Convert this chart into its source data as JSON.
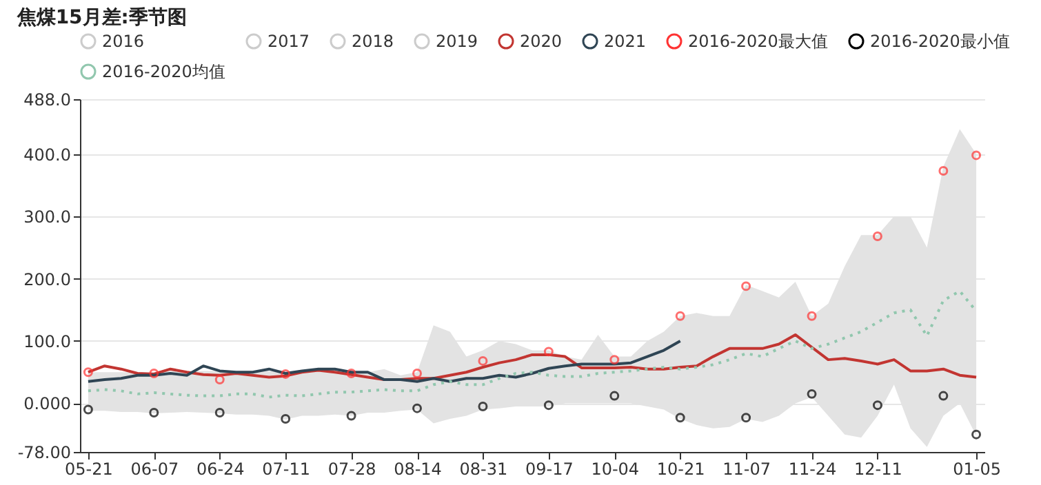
{
  "chart_data": {
    "type": "line",
    "title": "焦煤15月差:季节图",
    "categories": [
      "05-21",
      null,
      null,
      null,
      "06-07",
      null,
      null,
      null,
      "06-24",
      null,
      null,
      null,
      "07-11",
      null,
      null,
      null,
      "07-28",
      null,
      null,
      null,
      "08-14",
      null,
      null,
      null,
      "08-31",
      null,
      null,
      null,
      "09-17",
      null,
      null,
      null,
      "10-04",
      null,
      null,
      null,
      "10-21",
      null,
      null,
      null,
      "11-07",
      null,
      null,
      null,
      "11-24",
      null,
      null,
      null,
      "12-11",
      null,
      null,
      null,
      null,
      null,
      "01-05"
    ],
    "ylim": [
      -78,
      488
    ],
    "yticks": [
      {
        "value": -78,
        "label": "-78.00"
      },
      {
        "value": 0,
        "label": "0.000"
      },
      {
        "value": 100,
        "label": "100.0"
      },
      {
        "value": 200,
        "label": "200.0"
      },
      {
        "value": 300,
        "label": "300.0"
      },
      {
        "value": 400,
        "label": "400.0"
      },
      {
        "value": 488,
        "label": "488.0"
      }
    ],
    "grid": "y",
    "legend": "top",
    "series": [
      {
        "name": "2016",
        "color": "#cccccc",
        "values": [
          null,
          null,
          null,
          null,
          null,
          null,
          null,
          null,
          null,
          null,
          null,
          null,
          null,
          null,
          null,
          null,
          null,
          null,
          null,
          null,
          null,
          null,
          null,
          null,
          null,
          null,
          null,
          null,
          null,
          null,
          null,
          null,
          null,
          null,
          null,
          null,
          null,
          null,
          null,
          null,
          null,
          null,
          null,
          null,
          null,
          null,
          null,
          null,
          null,
          null,
          null,
          null,
          null,
          null,
          null
        ]
      },
      {
        "name": "2017",
        "color": "#cccccc",
        "values": [
          null,
          null,
          null,
          null,
          null,
          null,
          null,
          null,
          null,
          null,
          null,
          null,
          null,
          null,
          null,
          null,
          null,
          null,
          null,
          null,
          null,
          null,
          null,
          null,
          null,
          null,
          null,
          null,
          null,
          null,
          null,
          null,
          null,
          null,
          null,
          null,
          null,
          null,
          null,
          null,
          null,
          null,
          null,
          null,
          null,
          null,
          null,
          null,
          null,
          null,
          null,
          null,
          null,
          null,
          null
        ]
      },
      {
        "name": "2018",
        "color": "#cccccc",
        "values": [
          null,
          null,
          null,
          null,
          null,
          null,
          null,
          null,
          null,
          null,
          null,
          null,
          null,
          null,
          null,
          null,
          null,
          null,
          null,
          null,
          null,
          null,
          null,
          null,
          null,
          null,
          null,
          null,
          null,
          null,
          null,
          null,
          null,
          null,
          null,
          null,
          null,
          null,
          null,
          null,
          null,
          null,
          null,
          null,
          null,
          null,
          null,
          null,
          null,
          null,
          null,
          null,
          null,
          null,
          null
        ]
      },
      {
        "name": "2019",
        "color": "#cccccc",
        "values": [
          null,
          null,
          null,
          null,
          null,
          null,
          null,
          null,
          null,
          null,
          null,
          null,
          null,
          null,
          null,
          null,
          null,
          null,
          null,
          null,
          null,
          null,
          null,
          null,
          null,
          null,
          null,
          null,
          null,
          null,
          null,
          null,
          null,
          null,
          null,
          null,
          null,
          null,
          null,
          null,
          null,
          null,
          null,
          null,
          null,
          null,
          null,
          null,
          null,
          null,
          null,
          null,
          null,
          null,
          null
        ]
      },
      {
        "name": "2020",
        "color": "#c23531",
        "values": [
          50,
          60,
          55,
          48,
          47,
          55,
          50,
          46,
          45,
          48,
          45,
          42,
          44,
          50,
          53,
          50,
          46,
          42,
          38,
          38,
          40,
          40,
          45,
          50,
          58,
          65,
          70,
          78,
          78,
          75,
          57,
          57,
          57,
          58,
          55,
          55,
          58,
          60,
          75,
          88,
          88,
          88,
          95,
          110,
          90,
          70,
          72,
          68,
          63,
          70,
          52,
          52,
          55,
          45,
          42
        ]
      },
      {
        "name": "2021",
        "color": "#2f4554",
        "values": [
          35,
          38,
          40,
          45,
          45,
          48,
          45,
          60,
          52,
          50,
          50,
          55,
          48,
          52,
          55,
          55,
          50,
          50,
          38,
          38,
          35,
          40,
          35,
          40,
          40,
          45,
          42,
          48,
          56,
          60,
          63,
          63,
          63,
          65,
          75,
          85,
          100,
          null,
          null,
          null,
          null,
          null,
          null,
          null,
          null,
          null,
          null,
          null,
          null,
          null,
          null,
          null,
          null,
          null,
          null
        ]
      },
      {
        "name": "2016-2020最大值",
        "color": "#ff3333",
        "type": "scatter",
        "marker": "circle",
        "values": [
          50,
          null,
          null,
          null,
          48,
          null,
          null,
          null,
          38,
          null,
          null,
          null,
          47,
          null,
          null,
          null,
          48,
          null,
          null,
          null,
          48,
          null,
          null,
          null,
          68,
          null,
          null,
          null,
          83,
          null,
          null,
          null,
          70,
          null,
          null,
          null,
          140,
          null,
          null,
          null,
          188,
          null,
          null,
          null,
          140,
          null,
          null,
          null,
          268,
          null,
          null,
          null,
          373,
          null,
          398
        ]
      },
      {
        "name": "2016-2020最小值",
        "color": "#000000",
        "type": "scatter",
        "marker": "circle",
        "values": [
          -10,
          null,
          null,
          null,
          -15,
          null,
          null,
          null,
          -15,
          null,
          null,
          null,
          -25,
          null,
          null,
          null,
          -20,
          null,
          null,
          null,
          -8,
          null,
          null,
          null,
          -5,
          null,
          null,
          null,
          -3,
          null,
          null,
          null,
          12,
          null,
          null,
          null,
          -23,
          null,
          null,
          null,
          -23,
          null,
          null,
          null,
          15,
          null,
          null,
          null,
          -3,
          null,
          null,
          null,
          12,
          null,
          -50
        ]
      },
      {
        "name": "2016-2020均值",
        "color": "#91c7ae",
        "line_style": "dotted",
        "values": [
          20,
          22,
          20,
          15,
          17,
          15,
          13,
          12,
          12,
          15,
          15,
          10,
          13,
          12,
          15,
          18,
          18,
          20,
          22,
          20,
          20,
          30,
          35,
          30,
          30,
          40,
          48,
          50,
          45,
          43,
          43,
          48,
          50,
          52,
          55,
          58,
          55,
          58,
          62,
          70,
          80,
          75,
          88,
          100,
          88,
          95,
          105,
          115,
          130,
          145,
          150,
          108,
          165,
          180,
          148
        ],
        "lower": [
          -12,
          -12,
          -14,
          -14,
          -16,
          -15,
          -14,
          -15,
          -16,
          -18,
          -18,
          -20,
          -26,
          -20,
          -20,
          -18,
          -20,
          -15,
          -15,
          -12,
          -10,
          -32,
          -25,
          -20,
          -10,
          -8,
          -5,
          -5,
          -5,
          0,
          0,
          0,
          0,
          0,
          -5,
          -10,
          -25,
          -35,
          -40,
          -38,
          -25,
          -30,
          -20,
          0,
          10,
          -20,
          -50,
          -55,
          -20,
          30,
          -40,
          -70,
          -20,
          0,
          -52
        ],
        "upper": [
          50,
          50,
          50,
          50,
          50,
          52,
          52,
          52,
          52,
          52,
          52,
          52,
          50,
          52,
          55,
          55,
          52,
          50,
          55,
          45,
          50,
          125,
          115,
          75,
          85,
          100,
          95,
          85,
          85,
          75,
          70,
          110,
          75,
          75,
          100,
          115,
          140,
          145,
          140,
          140,
          190,
          180,
          170,
          195,
          140,
          160,
          220,
          270,
          270,
          300,
          300,
          250,
          380,
          440,
          400
        ]
      }
    ]
  }
}
